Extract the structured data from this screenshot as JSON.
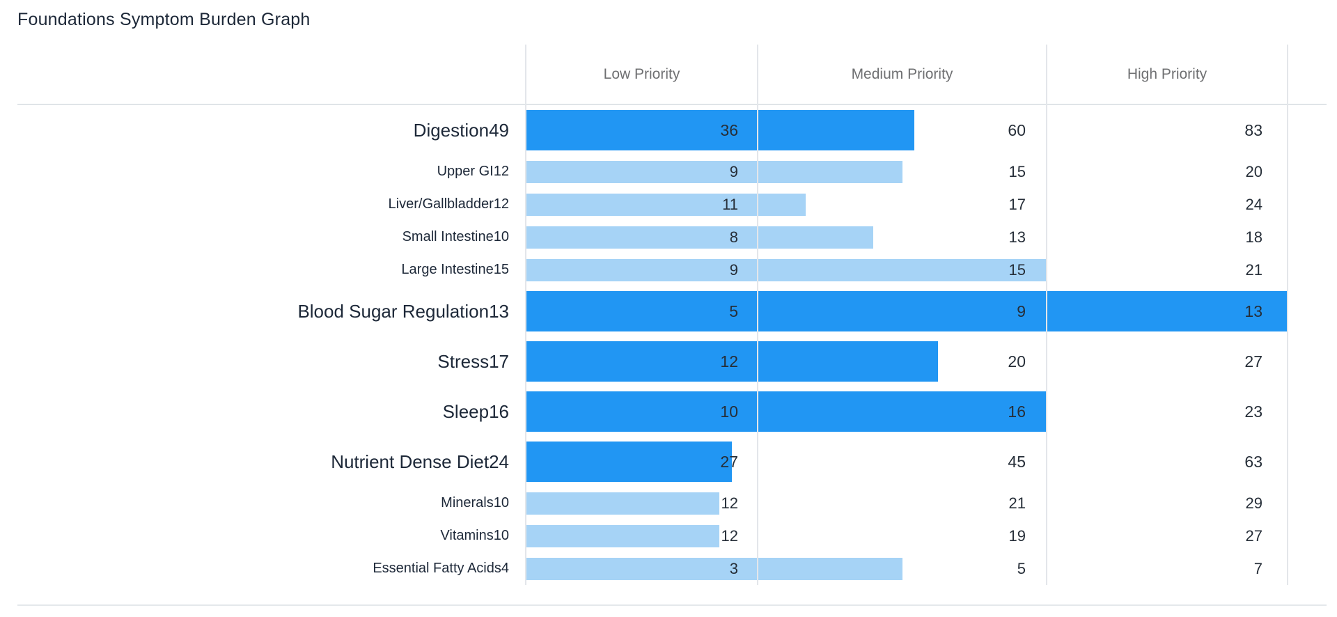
{
  "title": "Foundations Symptom Burden Graph",
  "header": {
    "columns": [
      "Low Priority",
      "Medium Priority",
      "High Priority"
    ]
  },
  "colors": {
    "major_bar": "#2196F3",
    "minor_bar": "#A6D3F6",
    "gridline": "#E3E6EA",
    "header_text": "#6F7072",
    "label_text": "#1D2838",
    "number_text": "#262E38"
  },
  "chart_data": {
    "type": "bar",
    "orientation": "horizontal",
    "title": "Foundations Symptom Burden Graph",
    "columns": [
      "Low Priority",
      "Medium Priority",
      "High Priority"
    ],
    "legend": "off",
    "grid": "vertical-column-boundaries",
    "rows": [
      {
        "label": "Digestion",
        "score": 49,
        "level": "major",
        "thresholds": [
          36,
          60,
          83
        ]
      },
      {
        "label": "Upper GI",
        "score": 12,
        "level": "minor",
        "thresholds": [
          9,
          15,
          20
        ]
      },
      {
        "label": "Liver/Gallbladder",
        "score": 12,
        "level": "minor",
        "thresholds": [
          11,
          17,
          24
        ]
      },
      {
        "label": "Small Intestine",
        "score": 10,
        "level": "minor",
        "thresholds": [
          8,
          13,
          18
        ]
      },
      {
        "label": "Large Intestine",
        "score": 15,
        "level": "minor",
        "thresholds": [
          9,
          15,
          21
        ]
      },
      {
        "label": "Blood Sugar Regulation",
        "score": 13,
        "level": "major",
        "thresholds": [
          5,
          9,
          13
        ]
      },
      {
        "label": "Stress",
        "score": 17,
        "level": "major",
        "thresholds": [
          12,
          20,
          27
        ]
      },
      {
        "label": "Sleep",
        "score": 16,
        "level": "major",
        "thresholds": [
          10,
          16,
          23
        ]
      },
      {
        "label": "Nutrient Dense Diet",
        "score": 24,
        "level": "major",
        "thresholds": [
          27,
          45,
          63
        ]
      },
      {
        "label": "Minerals",
        "score": 10,
        "level": "minor",
        "thresholds": [
          12,
          21,
          29
        ]
      },
      {
        "label": "Vitamins",
        "score": 10,
        "level": "minor",
        "thresholds": [
          12,
          19,
          27
        ]
      },
      {
        "label": "Essential Fatty Acids",
        "score": 4,
        "level": "minor",
        "thresholds": [
          3,
          5,
          7
        ]
      }
    ]
  }
}
